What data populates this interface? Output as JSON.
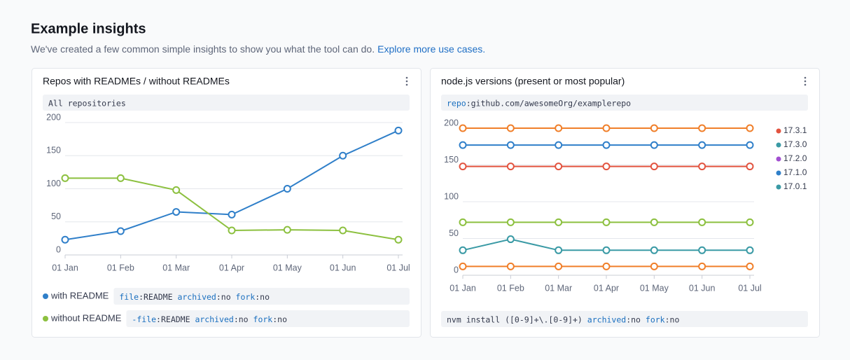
{
  "header": {
    "title": "Example insights",
    "description": "We've created a few common simple insights to show you what the tool can do.",
    "link": "Explore more use cases."
  },
  "chart_data": [
    {
      "type": "line",
      "title": "Repos with READMEs / without READMEs",
      "legend": "bottom",
      "filter": [
        {
          "text": "All repositories",
          "kind": "plain"
        }
      ],
      "categories": [
        "01 Jan",
        "01 Feb",
        "01 Mar",
        "01 Apr",
        "01 May",
        "01 Jun",
        "01 Jul"
      ],
      "ylim": [
        0,
        200
      ],
      "yticks": [
        0,
        50,
        100,
        150,
        200
      ],
      "grid": true,
      "series": [
        {
          "name": "with README",
          "color": "#2f7fc9",
          "values": [
            23,
            36,
            65,
            61,
            100,
            150,
            188
          ],
          "query": [
            {
              "text": "file",
              "kind": "field"
            },
            {
              "text": ":README ",
              "kind": "plain"
            },
            {
              "text": "archived",
              "kind": "field"
            },
            {
              "text": ":no ",
              "kind": "plain"
            },
            {
              "text": "fork",
              "kind": "field"
            },
            {
              "text": ":no",
              "kind": "plain"
            }
          ]
        },
        {
          "name": "without README",
          "color": "#8cc03f",
          "values": [
            116,
            116,
            98,
            37,
            38,
            37,
            23
          ],
          "query": [
            {
              "text": "-file",
              "kind": "field"
            },
            {
              "text": ":README ",
              "kind": "plain"
            },
            {
              "text": "archived",
              "kind": "field"
            },
            {
              "text": ":no ",
              "kind": "plain"
            },
            {
              "text": "fork",
              "kind": "field"
            },
            {
              "text": ":no",
              "kind": "plain"
            }
          ]
        }
      ]
    },
    {
      "type": "line",
      "title": "node.js versions (present or most popular)",
      "legend": "right",
      "filter": [
        {
          "text": "repo",
          "kind": "field"
        },
        {
          "text": ":github.com/awesomeOrg/examplerepo",
          "kind": "plain"
        }
      ],
      "query": [
        {
          "text": "nvm install ([0-9]+\\.[0-9]+) ",
          "kind": "plain"
        },
        {
          "text": "archived",
          "kind": "field"
        },
        {
          "text": ":no ",
          "kind": "plain"
        },
        {
          "text": "fork",
          "kind": "field"
        },
        {
          "text": ":no",
          "kind": "plain"
        }
      ],
      "categories": [
        "01 Jan",
        "01 Feb",
        "01 Mar",
        "01 Apr",
        "01 May",
        "01 Jun",
        "01 Jul"
      ],
      "ylim": [
        0,
        200
      ],
      "yticks": [
        0,
        50,
        100,
        150,
        200
      ],
      "grid": true,
      "series": [
        {
          "name": "17.3.1",
          "color": "#e2533f",
          "values": [
            148,
            148,
            148,
            148,
            148,
            148,
            148
          ]
        },
        {
          "name": "17.3.0",
          "color": "#3a9aa5",
          "values": [
            34,
            49,
            34,
            34,
            34,
            34,
            34
          ]
        },
        {
          "name": "17.2.0",
          "color": "#a24fd1",
          "values": [
            null,
            null,
            null,
            null,
            null,
            null,
            null
          ]
        },
        {
          "name": "17.1.0",
          "color": "#2f7fc9",
          "values": [
            177,
            177,
            177,
            177,
            177,
            177,
            177
          ]
        },
        {
          "name": "17.0.1",
          "color": "#3a9aa5",
          "values": [
            null,
            null,
            null,
            null,
            null,
            null,
            null
          ]
        },
        {
          "color": "#f07f2a",
          "values": [
            200,
            200,
            200,
            200,
            200,
            200,
            200
          ]
        },
        {
          "color": "#8cc03f",
          "values": [
            72,
            72,
            72,
            72,
            72,
            72,
            72
          ]
        },
        {
          "color": "#f07f2a",
          "values": [
            12,
            12,
            12,
            12,
            12,
            12,
            12
          ]
        }
      ]
    }
  ]
}
